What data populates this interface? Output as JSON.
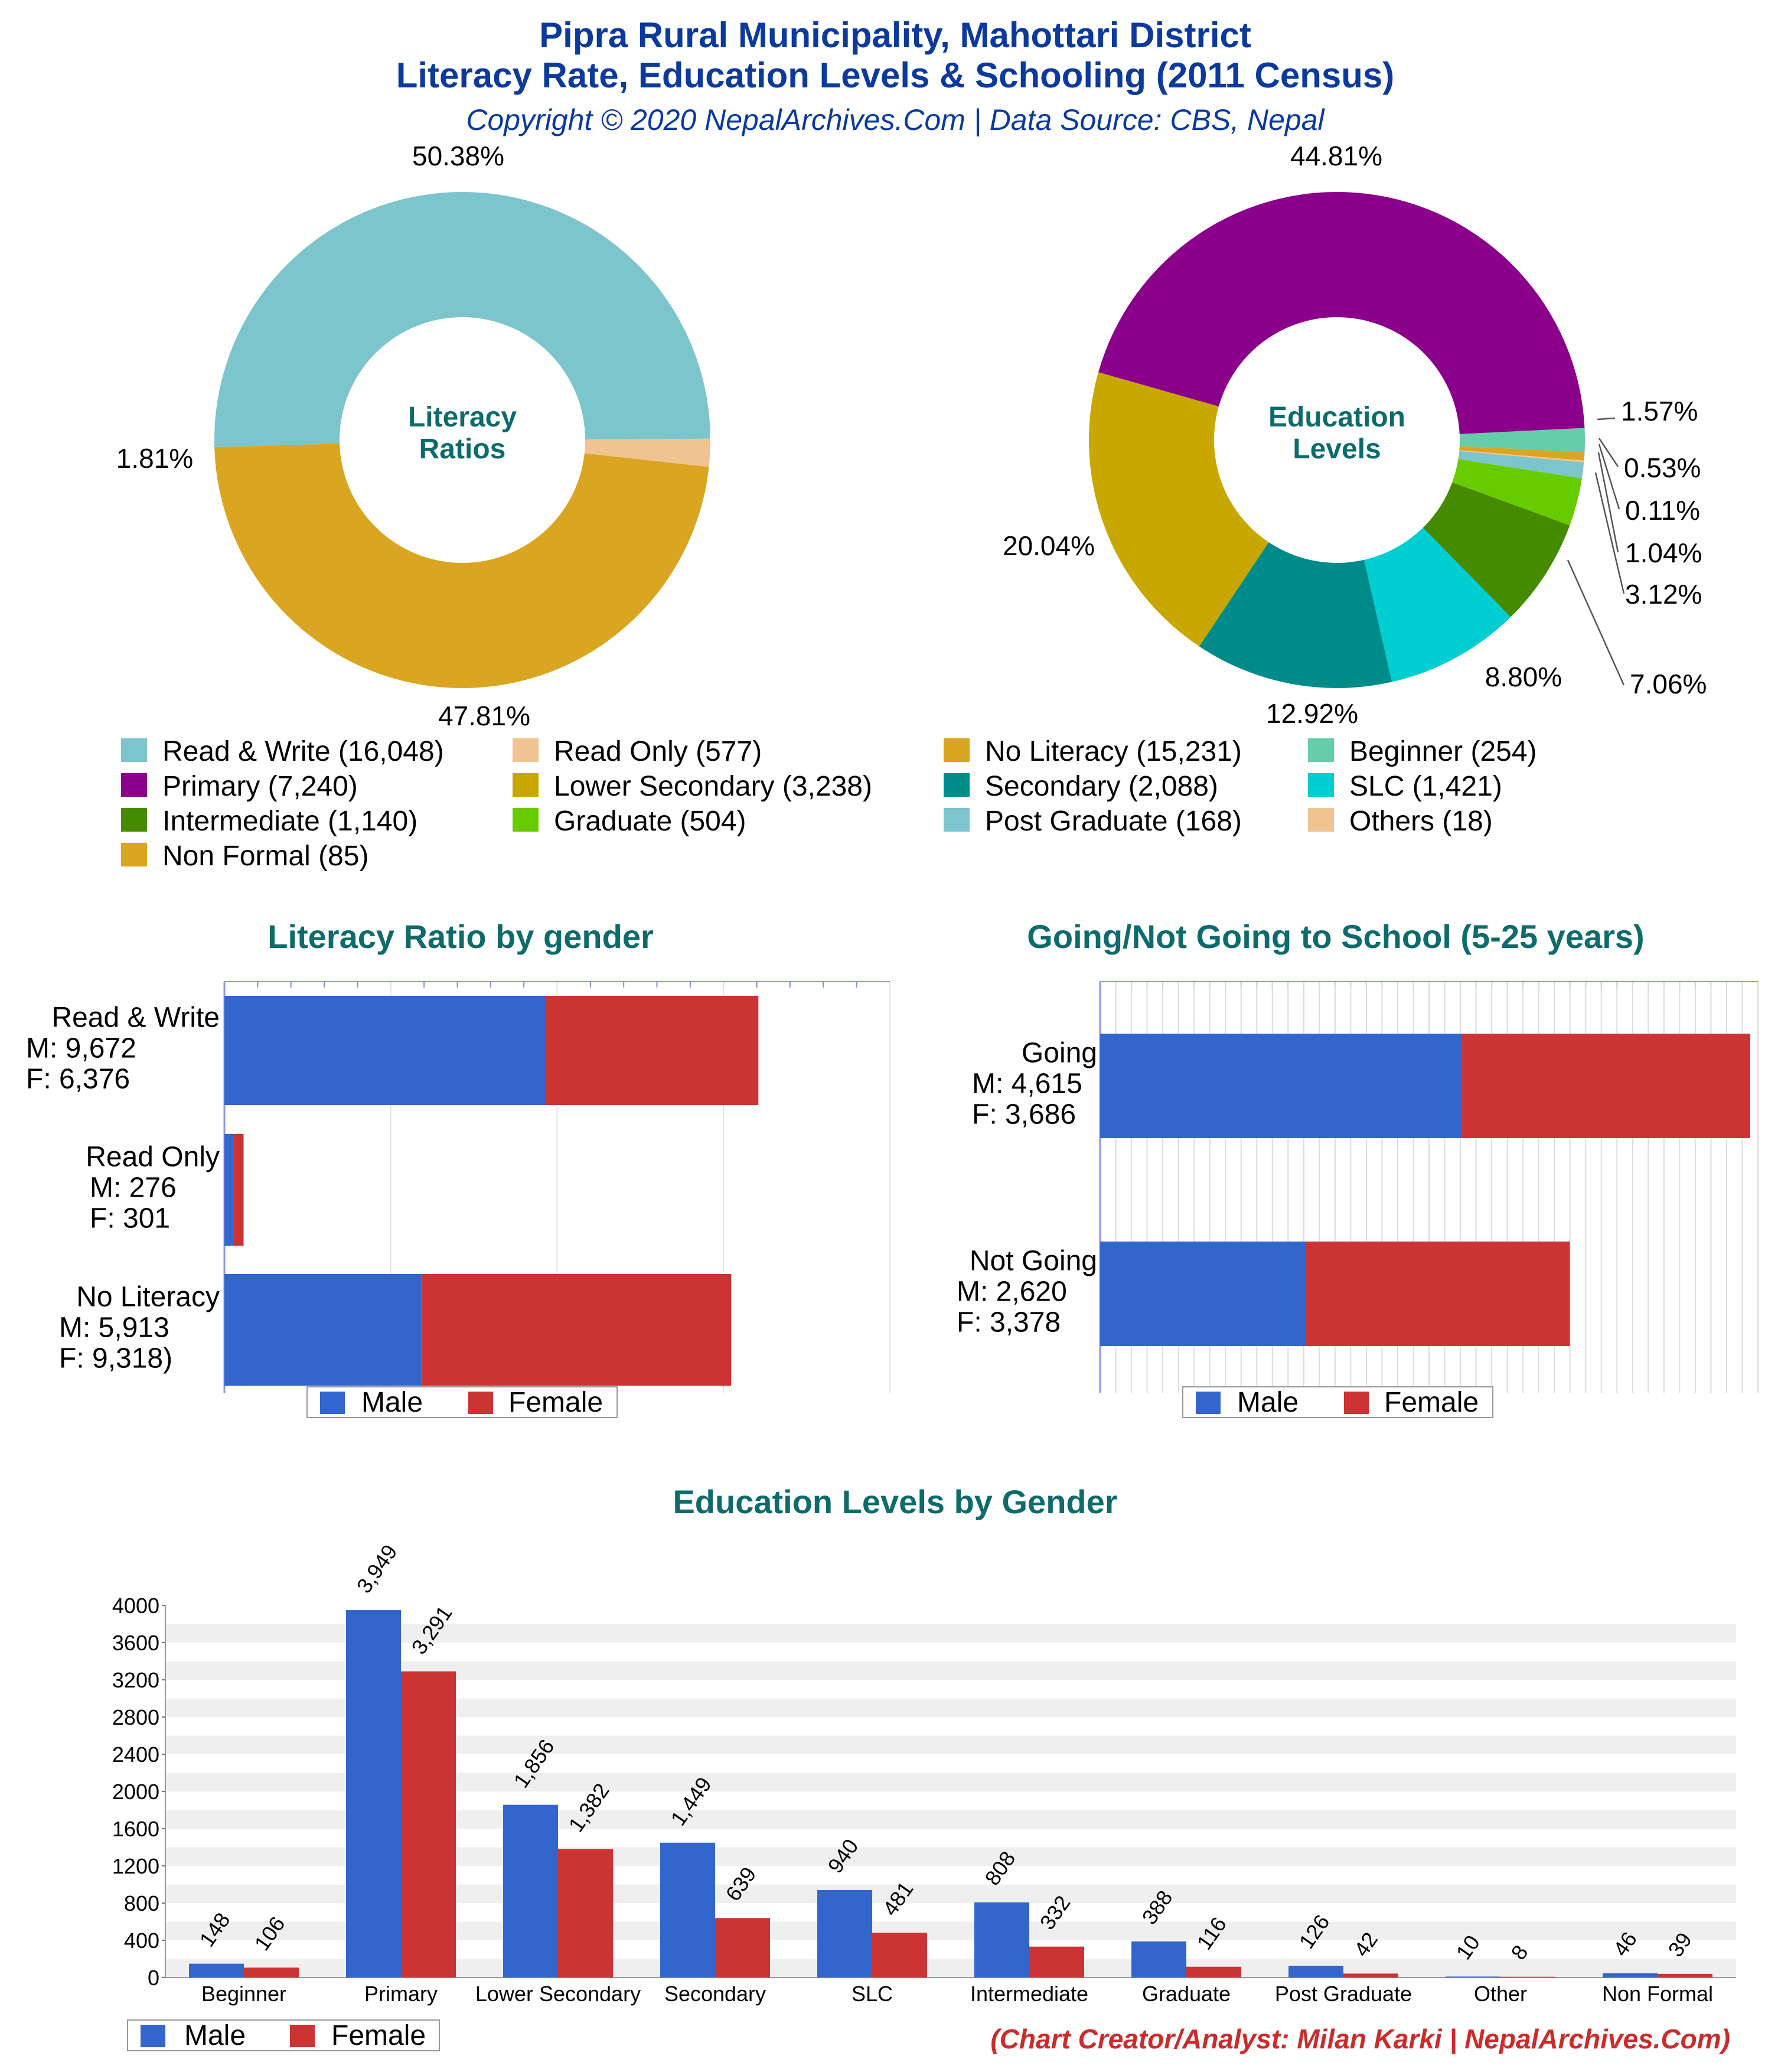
{
  "header": {
    "title_line1": "Pipra Rural Municipality, Mahottari District",
    "title_line2": "Literacy Rate, Education Levels & Schooling (2011 Census)",
    "subtitle": "Copyright © 2020 NepalArchives.Com | Data Source: CBS, Nepal"
  },
  "credit": "(Chart Creator/Analyst: Milan Karki | NepalArchives.Com)",
  "colors": {
    "male": "#3366cc",
    "female": "#cc3333",
    "title": "#0b3a9c",
    "section_title": "#0e6b6b",
    "credit": "#cc2b2b"
  },
  "chart_data": [
    {
      "type": "pie",
      "center_label": [
        "Literacy",
        "Ratios"
      ],
      "slices": [
        {
          "label": "Read & Write",
          "value": 16048,
          "pct": "50.38%",
          "color": "#7dc5cc"
        },
        {
          "label": "Read Only",
          "value": 577,
          "pct": "1.81%",
          "color": "#f0c490"
        },
        {
          "label": "No Literacy",
          "value": 15231,
          "pct": "47.81%",
          "color": "#daa520"
        }
      ]
    },
    {
      "type": "pie",
      "center_label": [
        "Education",
        "Levels"
      ],
      "slices": [
        {
          "label": "Beginner",
          "value": 254,
          "pct": "1.57%",
          "color": "#66cdaa"
        },
        {
          "label": "Non Formal",
          "value": 85,
          "pct": "0.53%",
          "color": "#daa520"
        },
        {
          "label": "Others",
          "value": 18,
          "pct": "0.11%",
          "color": "#f0c490"
        },
        {
          "label": "Post Graduate",
          "value": 168,
          "pct": "1.04%",
          "color": "#7dc5cc"
        },
        {
          "label": "Graduate",
          "value": 504,
          "pct": "3.12%",
          "color": "#66cc00"
        },
        {
          "label": "Intermediate",
          "value": 1140,
          "pct": "7.06%",
          "color": "#458b00"
        },
        {
          "label": "SLC",
          "value": 1421,
          "pct": "8.80%",
          "color": "#00ced1"
        },
        {
          "label": "Secondary",
          "value": 2088,
          "pct": "12.92%",
          "color": "#008b8b"
        },
        {
          "label": "Lower Secondary",
          "value": 3238,
          "pct": "20.04%",
          "color": "#c8a800"
        },
        {
          "label": "Primary",
          "value": 7240,
          "pct": "44.81%",
          "color": "#8b008b"
        }
      ]
    },
    {
      "type": "bar",
      "orientation": "horizontal",
      "stacked": true,
      "title": "Literacy Ratio by gender",
      "categories": [
        {
          "name": "Read & Write",
          "m_label": "M: 9,672",
          "f_label": "F: 6,376"
        },
        {
          "name": "Read Only",
          "m_label": "M: 276",
          "f_label": "F: 301"
        },
        {
          "name": "No Literacy",
          "m_label": "M: 5,913",
          "f_label": "F: 9,318)"
        }
      ],
      "series": [
        {
          "name": "Male",
          "values": [
            9672,
            276,
            5913
          ]
        },
        {
          "name": "Female",
          "values": [
            6376,
            301,
            9318
          ]
        }
      ],
      "xlim": [
        0,
        20000
      ],
      "legend": [
        "Male",
        "Female"
      ]
    },
    {
      "type": "bar",
      "orientation": "horizontal",
      "stacked": true,
      "title": "Going/Not Going to School (5-25 years)",
      "categories": [
        {
          "name": "Going",
          "m_label": "M: 4,615",
          "f_label": "F: 3,686"
        },
        {
          "name": "Not Going",
          "m_label": "M: 2,620",
          "f_label": "F: 3,378"
        }
      ],
      "series": [
        {
          "name": "Male",
          "values": [
            4615,
            2620
          ]
        },
        {
          "name": "Female",
          "values": [
            3686,
            3378
          ]
        }
      ],
      "xlim": [
        0,
        8400
      ],
      "legend": [
        "Male",
        "Female"
      ]
    },
    {
      "type": "bar",
      "title": "Education Levels by Gender",
      "categories": [
        "Beginner",
        "Primary",
        "Lower Secondary",
        "Secondary",
        "SLC",
        "Intermediate",
        "Graduate",
        "Post Graduate",
        "Other",
        "Non Formal"
      ],
      "series": [
        {
          "name": "Male",
          "values": [
            148,
            3949,
            1856,
            1449,
            940,
            808,
            388,
            126,
            10,
            46
          ],
          "labels": [
            "148",
            "3,949",
            "1,856",
            "1,449",
            "940",
            "808",
            "388",
            "126",
            "10",
            "46"
          ]
        },
        {
          "name": "Female",
          "values": [
            106,
            3291,
            1382,
            639,
            481,
            332,
            116,
            42,
            8,
            39
          ],
          "labels": [
            "106",
            "3,291",
            "1,382",
            "639",
            "481",
            "332",
            "116",
            "42",
            "8",
            "39"
          ]
        }
      ],
      "ylim": [
        0,
        4000
      ],
      "yticks": [
        "0",
        "400",
        "800",
        "1200",
        "1600",
        "2000",
        "2400",
        "2800",
        "3200",
        "3600",
        "4000"
      ],
      "legend": [
        "Male",
        "Female"
      ]
    }
  ],
  "pie_legend": [
    {
      "label": "Read & Write (16,048)",
      "color": "#7dc5cc"
    },
    {
      "label": "Read Only (577)",
      "color": "#f0c490"
    },
    {
      "label": "No Literacy (15,231)",
      "color": "#daa520"
    },
    {
      "label": "Beginner (254)",
      "color": "#66cdaa"
    },
    {
      "label": "Primary (7,240)",
      "color": "#8b008b"
    },
    {
      "label": "Lower Secondary (3,238)",
      "color": "#c8a800"
    },
    {
      "label": "Secondary (2,088)",
      "color": "#008b8b"
    },
    {
      "label": "SLC (1,421)",
      "color": "#00ced1"
    },
    {
      "label": "Intermediate (1,140)",
      "color": "#458b00"
    },
    {
      "label": "Graduate (504)",
      "color": "#66cc00"
    },
    {
      "label": "Post Graduate (168)",
      "color": "#7dc5cc"
    },
    {
      "label": "Others (18)",
      "color": "#f0c490"
    },
    {
      "label": "Non Formal (85)",
      "color": "#daa520"
    }
  ]
}
